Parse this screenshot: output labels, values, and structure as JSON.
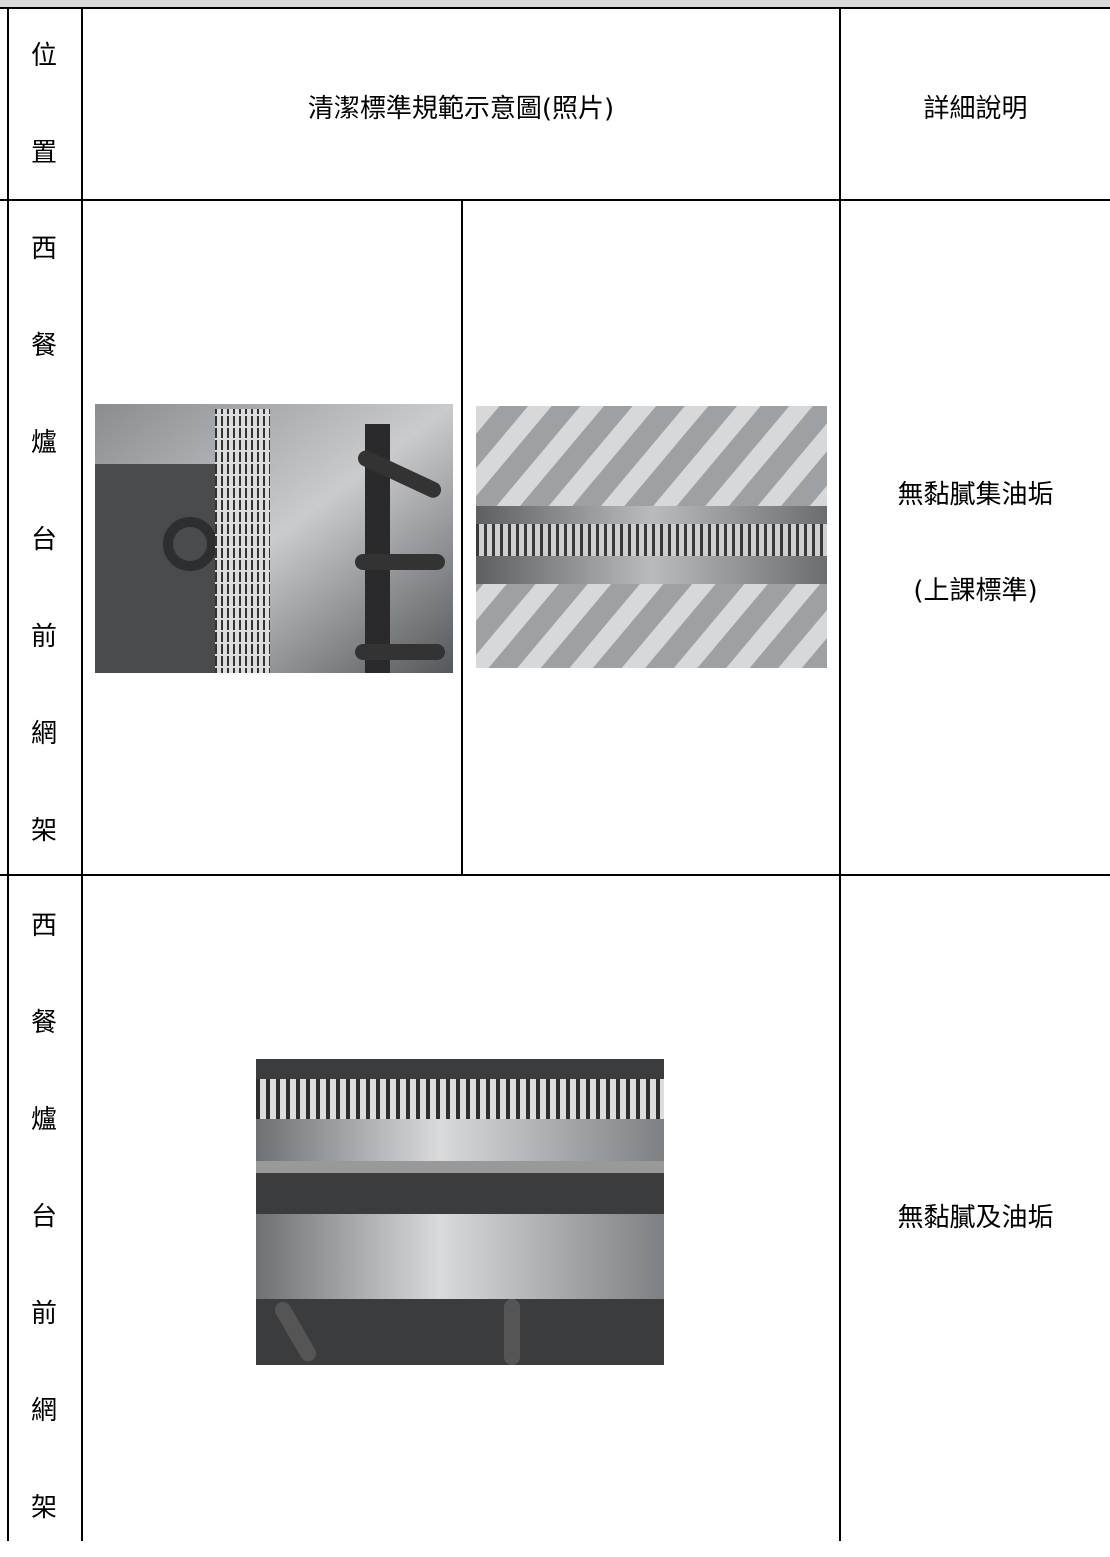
{
  "header": {
    "position": "位置",
    "photo": "清潔標準規範示意圖(照片)",
    "detail": "詳細說明"
  },
  "rows": [
    {
      "position": "西餐爐台前網架",
      "detail": [
        "無黏膩集油垢",
        "(上課標準)"
      ]
    },
    {
      "position": "西餐爐台前網架",
      "detail": [
        "無黏膩及油垢"
      ]
    }
  ]
}
